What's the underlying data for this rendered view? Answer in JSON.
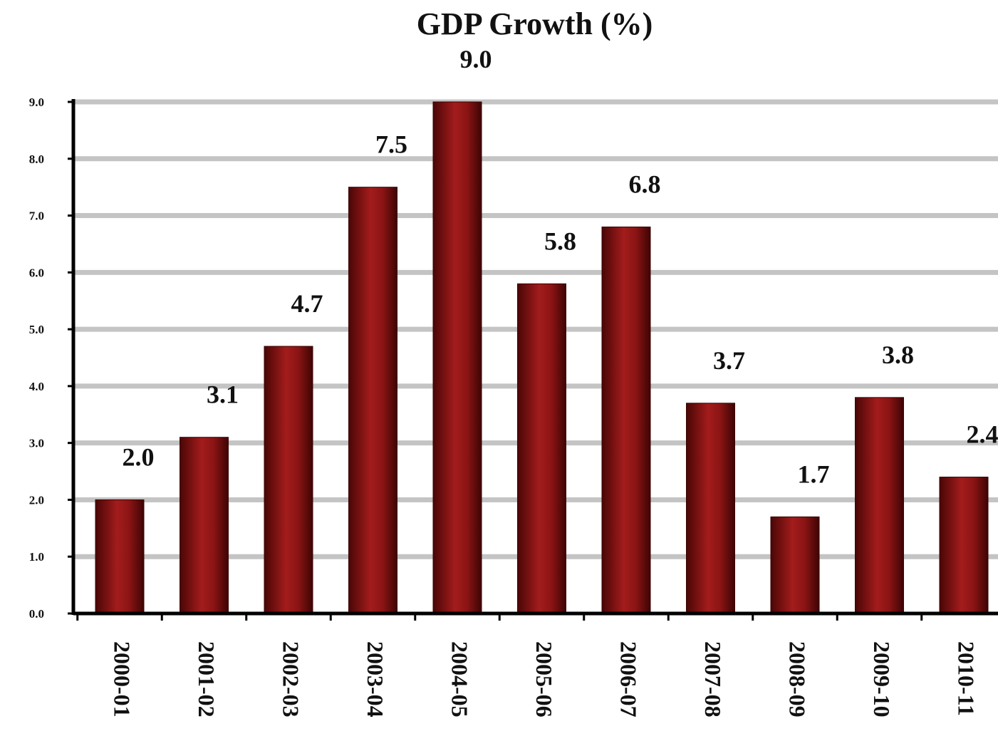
{
  "chart_data": {
    "type": "bar",
    "title": "GDP Growth (%)",
    "xlabel": "",
    "ylabel": "",
    "categories": [
      "2000-01",
      "2001-02",
      "2002-03",
      "2003-04",
      "2004-05",
      "2005-06",
      "2006-07",
      "2007-08",
      "2008-09",
      "2009-10",
      "2010-11"
    ],
    "values": [
      2.0,
      3.1,
      4.7,
      7.5,
      9.0,
      5.8,
      6.8,
      3.7,
      1.7,
      3.8,
      2.4
    ],
    "value_labels": [
      "2.0",
      "3.1",
      "4.7",
      "7.5",
      "9.0",
      "5.8",
      "6.8",
      "3.7",
      "1.7",
      "3.8",
      "2.4"
    ],
    "ylim": [
      0,
      9
    ],
    "yticks": [
      "0.0",
      "1.0",
      "2.0",
      "3.0",
      "4.0",
      "5.0",
      "6.0",
      "7.0",
      "8.0",
      "9.0"
    ],
    "grid": true,
    "legend": "none",
    "colors": {
      "bar": "#8b1414",
      "bar_dark": "#4a0606",
      "bar_light": "#b52a2a",
      "grid": "#c4c4c4",
      "axis": "#000000"
    }
  }
}
